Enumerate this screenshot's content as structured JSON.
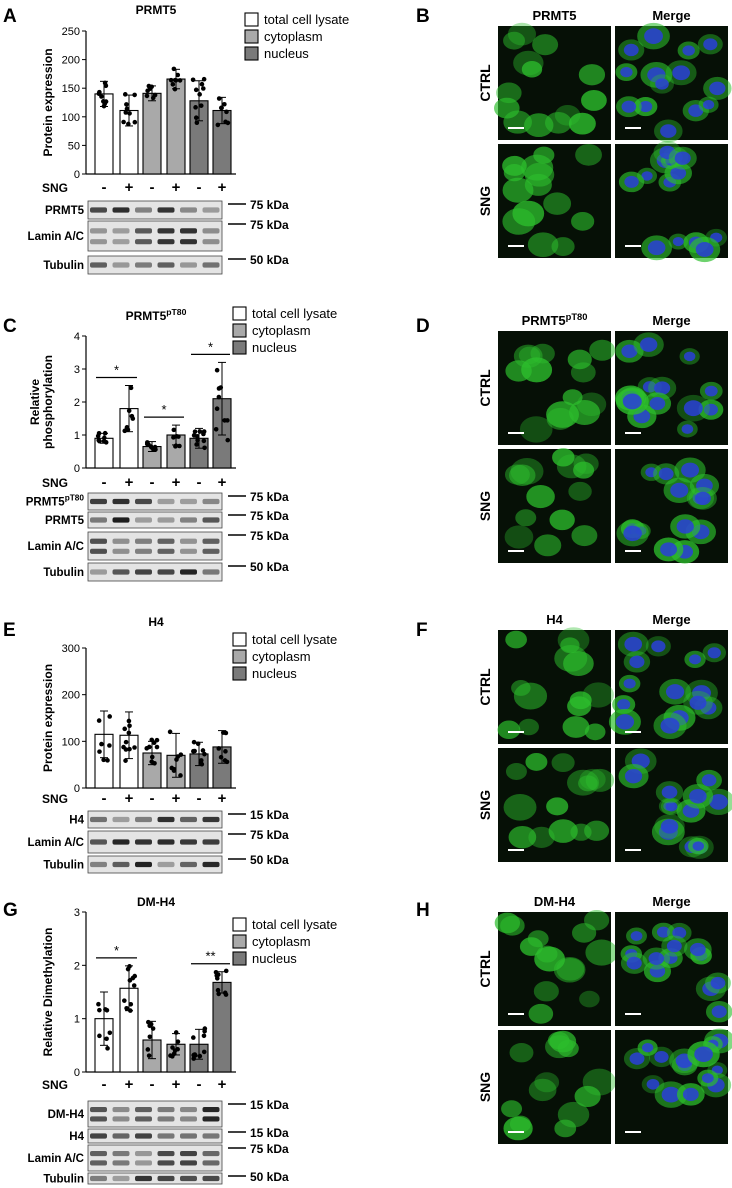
{
  "colors": {
    "total": "#ffffff",
    "cytoplasm": "#a9a9a9",
    "nucleus": "#7a7a7a",
    "blot_bg": "#e4e4e4",
    "band": "#1e1e1e",
    "micro_bg": "#061006",
    "micro_green": "#2dbf2d",
    "micro_blue": "#2a3fd8"
  },
  "legend": [
    "total cell lysate",
    "cytoplasm",
    "nucleus"
  ],
  "sng_label": "SNG",
  "sng_signs": [
    "-",
    "+",
    "-",
    "+",
    "-",
    "+"
  ],
  "row_labels": [
    "CTRL",
    "SNG"
  ],
  "panels": [
    {
      "letter": "A",
      "title": "PRMT5",
      "sup": "",
      "ylabel_lines": [
        "Protein expression"
      ],
      "ylim": [
        0,
        250
      ],
      "yticks": [
        "0",
        "50",
        "100",
        "150",
        "200",
        "250"
      ],
      "bars": [
        140,
        111,
        141,
        166,
        128,
        111
      ],
      "errs": [
        22,
        27,
        13,
        17,
        35,
        23
      ],
      "sig": [],
      "blots": [
        {
          "name": "PRMT5",
          "sup": "",
          "kda": "75 kDa"
        },
        {
          "name": "Lamin A/C",
          "sup": "",
          "kda": "75 kDa"
        },
        {
          "name": "Tubulin",
          "sup": "",
          "kda": "50 kDa"
        }
      ],
      "micro": {
        "stain": "PRMT5",
        "stain_sup": "",
        "merge": "Merge",
        "letter": "B"
      }
    },
    {
      "letter": "C",
      "title": "PRMT5",
      "sup": "pT80",
      "ylabel_lines": [
        "Relative",
        "phosphorylation"
      ],
      "ylim": [
        0,
        4
      ],
      "yticks": [
        "0",
        "1",
        "2",
        "3",
        "4"
      ],
      "bars": [
        0.9,
        1.8,
        0.65,
        1.0,
        0.9,
        2.1
      ],
      "errs": [
        0.15,
        0.7,
        0.15,
        0.3,
        0.3,
        1.1
      ],
      "sig": [
        {
          "from": 0,
          "to": 1,
          "text": "*"
        },
        {
          "from": 2,
          "to": 3,
          "text": "*"
        },
        {
          "from": 4,
          "to": 5,
          "text": "*"
        }
      ],
      "blots": [
        {
          "name": "PRMT5",
          "sup": "pT80",
          "kda": "75 kDa"
        },
        {
          "name": "PRMT5",
          "sup": "",
          "kda": "75 kDa"
        },
        {
          "name": "Lamin A/C",
          "sup": "",
          "kda": "75 kDa"
        },
        {
          "name": "Tubulin",
          "sup": "",
          "kda": "50 kDa"
        }
      ],
      "micro": {
        "stain": "PRMT5",
        "stain_sup": "pT80",
        "merge": "Merge",
        "letter": "D"
      }
    },
    {
      "letter": "E",
      "title": "H4",
      "sup": "",
      "ylabel_lines": [
        "Protein expression"
      ],
      "ylim": [
        0,
        300
      ],
      "yticks": [
        "0",
        "100",
        "200",
        "300"
      ],
      "bars": [
        115,
        113,
        75,
        70,
        73,
        88
      ],
      "errs": [
        50,
        50,
        25,
        47,
        25,
        35
      ],
      "sig": [],
      "blots": [
        {
          "name": "H4",
          "sup": "",
          "kda": "15 kDa"
        },
        {
          "name": "Lamin A/C",
          "sup": "",
          "kda": "75 kDa"
        },
        {
          "name": "Tubulin",
          "sup": "",
          "kda": "50 kDa"
        }
      ],
      "micro": {
        "stain": "H4",
        "stain_sup": "",
        "merge": "Merge",
        "letter": "F"
      }
    },
    {
      "letter": "G",
      "title": "DM-H4",
      "sup": "",
      "ylabel_lines": [
        "Relative Dimethylation"
      ],
      "ylim": [
        0,
        3
      ],
      "yticks": [
        "0",
        "1",
        "2",
        "3"
      ],
      "bars": [
        1.0,
        1.57,
        0.6,
        0.52,
        0.52,
        1.68
      ],
      "errs": [
        0.5,
        0.42,
        0.35,
        0.2,
        0.28,
        0.2
      ],
      "sig": [
        {
          "from": 0,
          "to": 1,
          "text": "*"
        },
        {
          "from": 4,
          "to": 5,
          "text": "**"
        }
      ],
      "blots": [
        {
          "name": "DM-H4",
          "sup": "",
          "kda": "15 kDa"
        },
        {
          "name": "H4",
          "sup": "",
          "kda": "15 kDa"
        },
        {
          "name": "Lamin A/C",
          "sup": "",
          "kda": "75 kDa"
        },
        {
          "name": "Tubulin",
          "sup": "",
          "kda": "50 kDa"
        }
      ],
      "micro": {
        "stain": "DM-H4",
        "stain_sup": "",
        "merge": "Merge",
        "letter": "H"
      }
    }
  ],
  "chart_data": [
    {
      "type": "bar",
      "title": "PRMT5",
      "ylabel": "Protein expression",
      "ylim": [
        0,
        250
      ],
      "categories": [
        "SNG -",
        "SNG +"
      ],
      "series": [
        {
          "name": "total cell lysate",
          "values": [
            140,
            111
          ]
        },
        {
          "name": "cytoplasm",
          "values": [
            141,
            166
          ]
        },
        {
          "name": "nucleus",
          "values": [
            128,
            111
          ]
        }
      ]
    },
    {
      "type": "bar",
      "title": "PRMT5pT80",
      "ylabel": "Relative phosphorylation",
      "ylim": [
        0,
        4
      ],
      "categories": [
        "SNG -",
        "SNG +"
      ],
      "series": [
        {
          "name": "total cell lysate",
          "values": [
            0.9,
            1.8
          ]
        },
        {
          "name": "cytoplasm",
          "values": [
            0.65,
            1.0
          ]
        },
        {
          "name": "nucleus",
          "values": [
            0.9,
            2.1
          ]
        }
      ]
    },
    {
      "type": "bar",
      "title": "H4",
      "ylabel": "Protein expression",
      "ylim": [
        0,
        300
      ],
      "categories": [
        "SNG -",
        "SNG +"
      ],
      "series": [
        {
          "name": "total cell lysate",
          "values": [
            115,
            113
          ]
        },
        {
          "name": "cytoplasm",
          "values": [
            75,
            70
          ]
        },
        {
          "name": "nucleus",
          "values": [
            73,
            88
          ]
        }
      ]
    },
    {
      "type": "bar",
      "title": "DM-H4",
      "ylabel": "Relative Dimethylation",
      "ylim": [
        0,
        3
      ],
      "categories": [
        "SNG -",
        "SNG +"
      ],
      "series": [
        {
          "name": "total cell lysate",
          "values": [
            1.0,
            1.57
          ]
        },
        {
          "name": "cytoplasm",
          "values": [
            0.6,
            0.52
          ]
        },
        {
          "name": "nucleus",
          "values": [
            0.52,
            1.68
          ]
        }
      ]
    }
  ]
}
